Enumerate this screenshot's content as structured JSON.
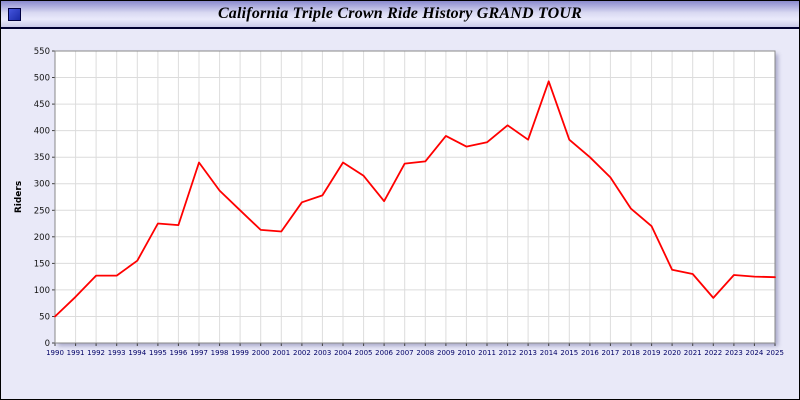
{
  "title_bar": {
    "title": "California Triple Crown Ride History GRAND TOUR"
  },
  "colors": {
    "line": "#ff0000",
    "background": "#e9e9f8",
    "plot_background": "#ffffff"
  },
  "chart_data": {
    "type": "line",
    "title": "California Triple Crown Ride History GRAND TOUR",
    "xlabel": "",
    "ylabel": "Riders",
    "ylim": [
      0,
      550
    ],
    "ytick_step": 50,
    "grid": true,
    "legend_position": "none",
    "categories": [
      1990,
      1991,
      1992,
      1993,
      1994,
      1995,
      1996,
      1997,
      1998,
      1999,
      2000,
      2001,
      2002,
      2003,
      2004,
      2005,
      2006,
      2007,
      2008,
      2009,
      2010,
      2011,
      2012,
      2013,
      2014,
      2015,
      2016,
      2017,
      2018,
      2019,
      2020,
      2021,
      2022,
      2023,
      2024,
      2025
    ],
    "series": [
      {
        "name": "Riders",
        "color": "#ff0000",
        "values": [
          50,
          87,
          127,
          127,
          155,
          225,
          222,
          340,
          287,
          250,
          213,
          210,
          265,
          278,
          340,
          315,
          267,
          338,
          342,
          390,
          370,
          378,
          410,
          383,
          493,
          383,
          350,
          312,
          253,
          220,
          138,
          130,
          85,
          128,
          125,
          124
        ]
      }
    ]
  }
}
